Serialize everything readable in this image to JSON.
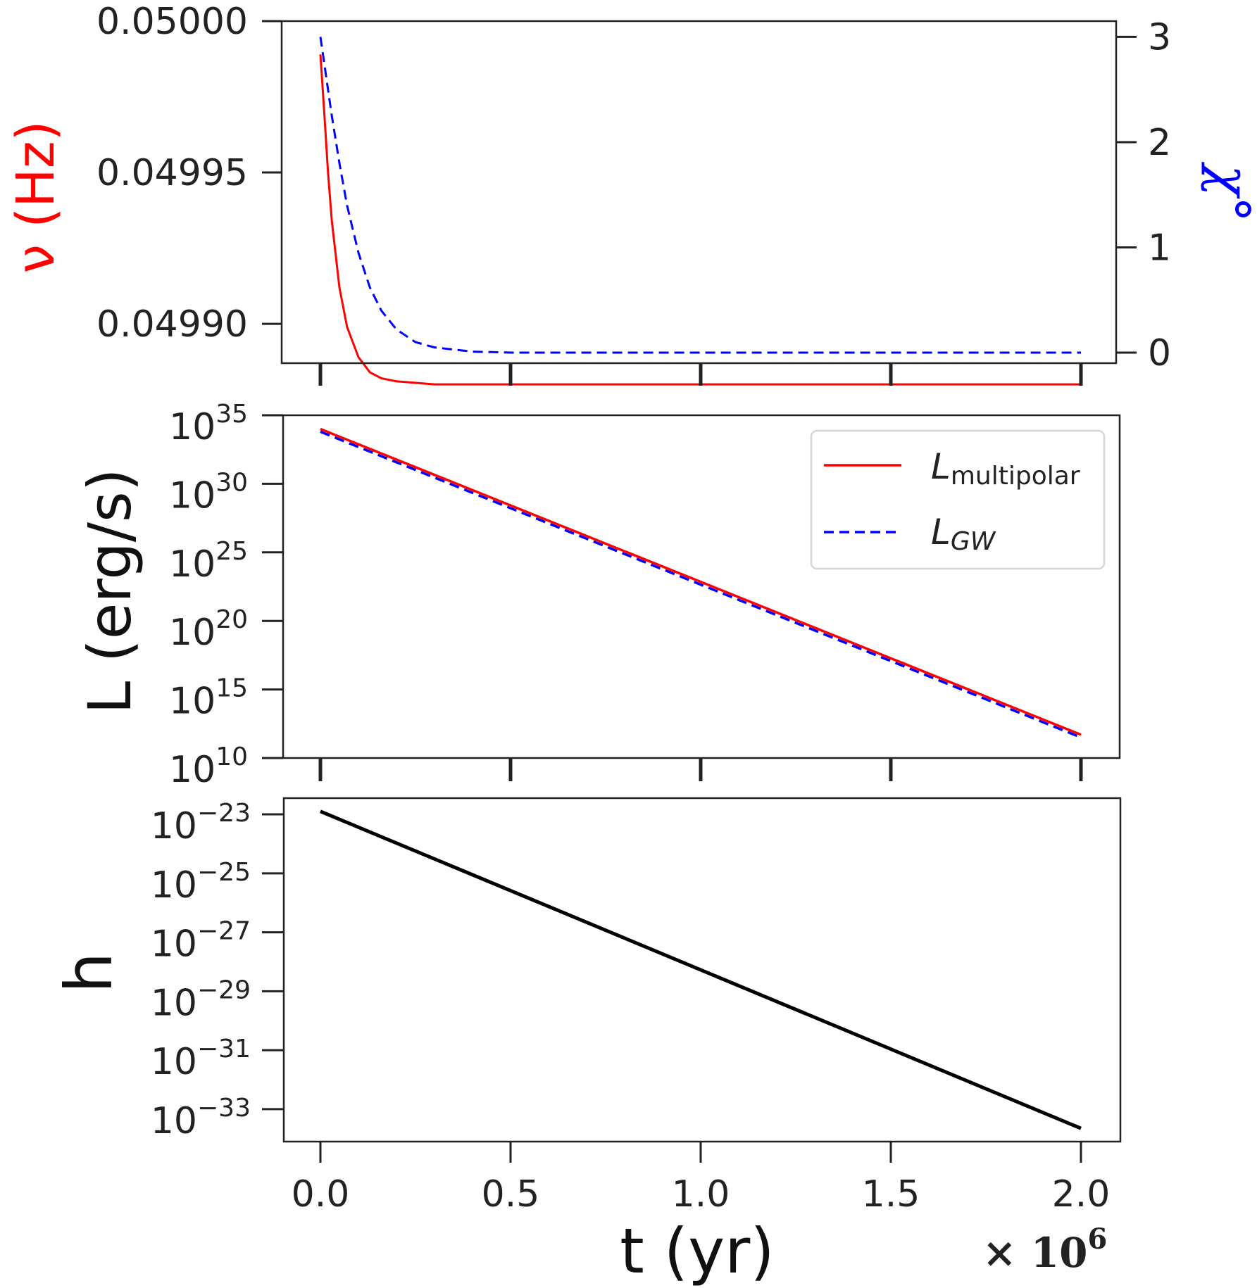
{
  "figure": {
    "xlabel": "t (yr)",
    "x_multiplier_base": "× 10",
    "x_multiplier_exp": "6"
  },
  "chart_data": [
    {
      "type": "line",
      "panel": "top",
      "xlim": [
        0.0,
        2.0
      ],
      "x_scale": 1000000,
      "ylabel_left": "ν (Hz)",
      "ylabel_left_color": "#ff0000",
      "ylabel_right": "χ°",
      "ylabel_right_color": "#0000ff",
      "ylim_left": [
        0.049887,
        0.05
      ],
      "ylim_right": [
        -0.1,
        3.15
      ],
      "yticks_left": [
        "0.05000",
        "0.04995",
        "0.04990"
      ],
      "ytick_values_left": [
        0.05,
        0.04995,
        0.0499
      ],
      "yticks_right": [
        "3",
        "2",
        "1",
        "0"
      ],
      "ytick_values_right": [
        3,
        2,
        1,
        0
      ],
      "series": [
        {
          "name": "ν",
          "axis": "left",
          "color": "#ff0000",
          "style": "solid",
          "x": [
            0.0,
            0.01,
            0.02,
            0.03,
            0.05,
            0.07,
            0.1,
            0.13,
            0.16,
            0.2,
            0.3,
            0.5,
            1.0,
            1.5,
            2.0
          ],
          "y": [
            0.049989,
            0.04997,
            0.04995,
            0.049934,
            0.049912,
            0.049899,
            0.049889,
            0.049884,
            0.049882,
            0.049881,
            0.04988,
            0.04988,
            0.04988,
            0.04988,
            0.04988
          ]
        },
        {
          "name": "χ°",
          "axis": "right",
          "color": "#0000ff",
          "style": "dashed",
          "x": [
            0.0,
            0.01,
            0.02,
            0.03,
            0.05,
            0.07,
            0.1,
            0.13,
            0.16,
            0.2,
            0.25,
            0.3,
            0.4,
            0.5,
            1.0,
            1.5,
            2.0
          ],
          "y": [
            3.0,
            2.75,
            2.5,
            2.25,
            1.8,
            1.4,
            0.95,
            0.62,
            0.4,
            0.22,
            0.1,
            0.05,
            0.01,
            0.0,
            0.0,
            0.0,
            0.0
          ]
        }
      ]
    },
    {
      "type": "line",
      "panel": "middle",
      "xlim": [
        0.0,
        2.0
      ],
      "x_scale": 1000000,
      "ylabel": "L (erg/s)",
      "y_scale": "log",
      "ylim_log10": [
        10,
        35
      ],
      "ytick_exponents": [
        "35",
        "30",
        "25",
        "20",
        "15",
        "10"
      ],
      "ytick_base": "10",
      "legend_position": "top-right",
      "series": [
        {
          "name": "L",
          "name_sub": "multipolar",
          "color": "#ff0000",
          "style": "solid",
          "x": [
            0.0,
            2.0
          ],
          "log10_y": [
            34.0,
            11.7
          ]
        },
        {
          "name": "L",
          "name_sub": "GW",
          "color": "#0000ff",
          "style": "dashed",
          "x": [
            0.0,
            2.0
          ],
          "log10_y": [
            33.8,
            11.5
          ]
        }
      ]
    },
    {
      "type": "line",
      "panel": "bottom",
      "xlim": [
        0.0,
        2.0
      ],
      "x_scale": 1000000,
      "xticks": [
        "0.0",
        "0.5",
        "1.0",
        "1.5",
        "2.0"
      ],
      "tick_values": [
        0.0,
        0.5,
        1.0,
        1.5,
        2.0
      ],
      "ylabel": "h",
      "y_scale": "log",
      "ylim_log10": [
        -34.1,
        -22.45
      ],
      "ytick_exponents": [
        "−23",
        "−25",
        "−27",
        "−29",
        "−31",
        "−33"
      ],
      "ytick_exponent_values": [
        -23,
        -25,
        -27,
        -29,
        -31,
        -33
      ],
      "ytick_base": "10",
      "series": [
        {
          "name": "h",
          "color": "#000000",
          "style": "solid",
          "x": [
            0.0,
            2.0
          ],
          "log10_y": [
            -22.9,
            -33.65
          ]
        }
      ]
    }
  ]
}
